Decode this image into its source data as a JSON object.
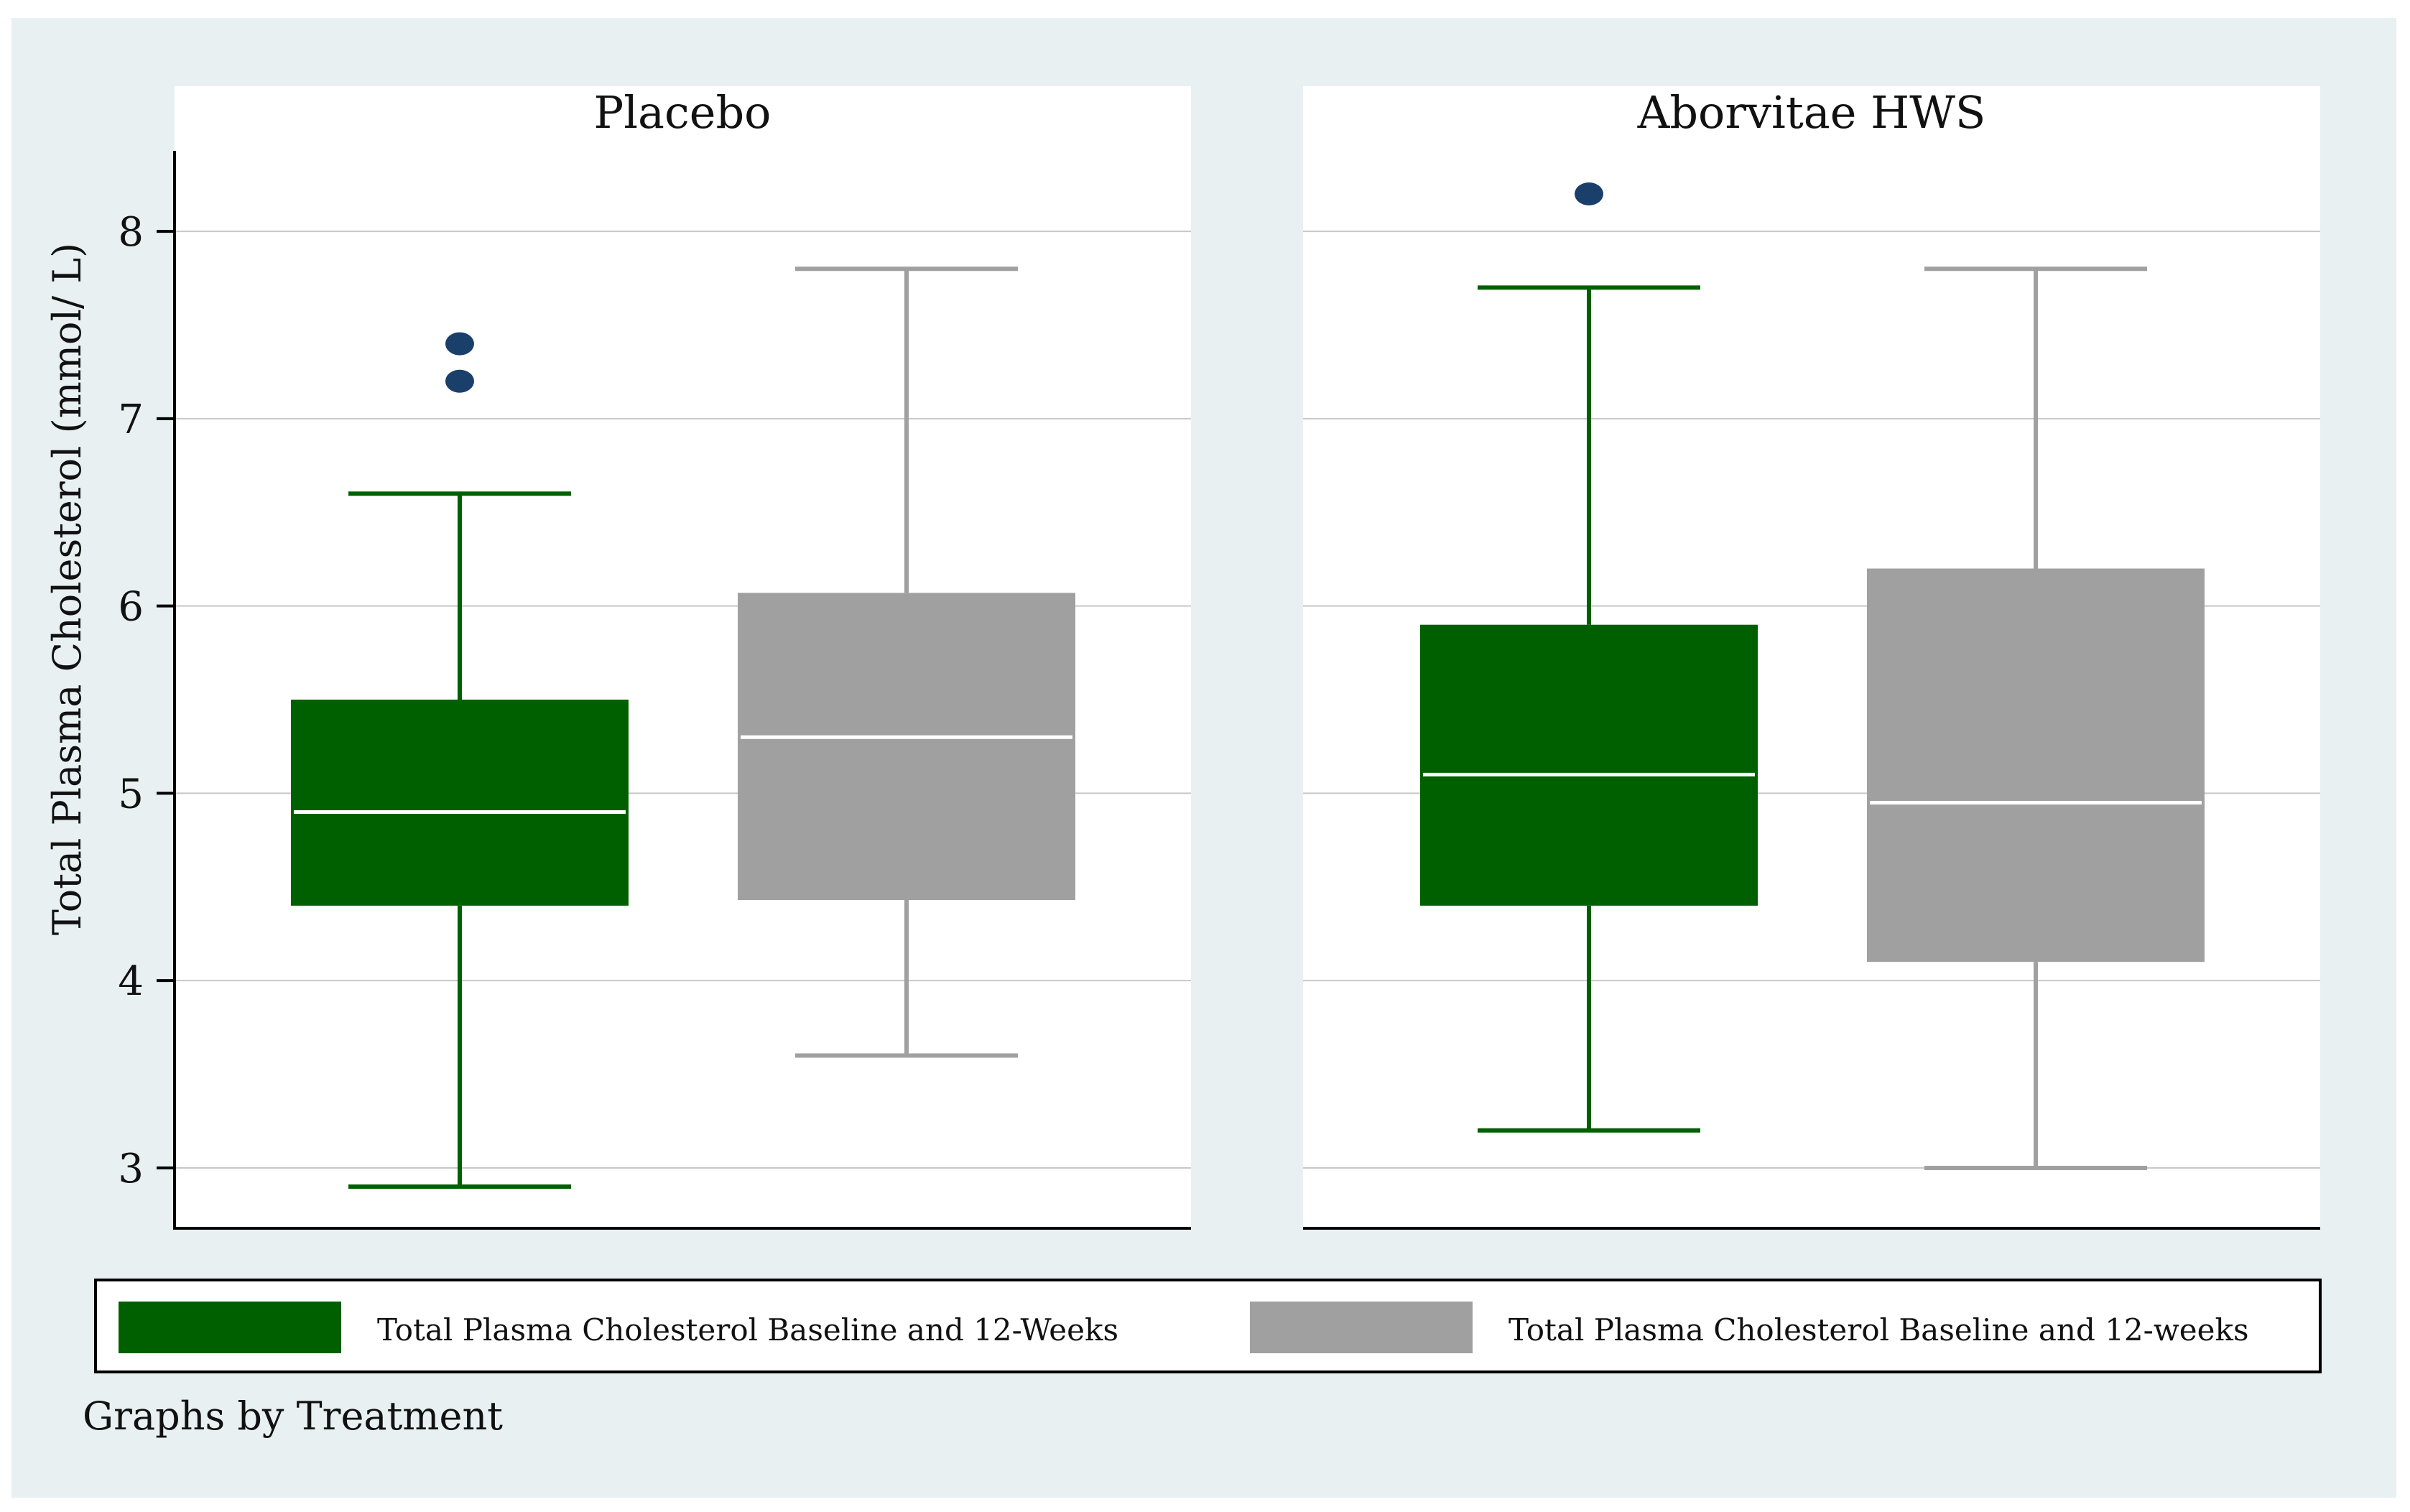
{
  "chart_data": {
    "type": "box",
    "ylabel": "Total Plasma Cholesterol (mmol/ L)",
    "yticks": [
      3,
      4,
      5,
      6,
      7,
      8
    ],
    "ylim": [
      2.67,
      8.43
    ],
    "grid": true,
    "note": "Graphs by Treatment",
    "legend": {
      "position": "bottom",
      "entries": [
        {
          "label": "Total Plasma Cholesterol Baseline and 12-Weeks",
          "color": "#006000"
        },
        {
          "label": "Total Plasma Cholesterol Baseline and 12-weeks",
          "color": "#a0a0a0"
        }
      ]
    },
    "panels": [
      {
        "title": "Placebo",
        "boxes": [
          {
            "color": "#006000",
            "min": 2.9,
            "q1": 4.4,
            "median": 4.9,
            "q3": 5.5,
            "max": 6.6,
            "outliers": [
              7.2,
              7.4
            ]
          },
          {
            "color": "#a0a0a0",
            "min": 3.6,
            "q1": 4.43,
            "median": 5.3,
            "q3": 6.07,
            "max": 7.8,
            "outliers": []
          }
        ]
      },
      {
        "title": "Aborvitae HWS",
        "boxes": [
          {
            "color": "#006000",
            "min": 3.2,
            "q1": 4.4,
            "median": 5.1,
            "q3": 5.9,
            "max": 7.7,
            "outliers": [
              8.2
            ]
          },
          {
            "color": "#a0a0a0",
            "min": 3.0,
            "q1": 4.1,
            "median": 4.95,
            "q3": 6.2,
            "max": 7.8,
            "outliers": []
          }
        ]
      }
    ],
    "colors": {
      "background": "#e8f0f2",
      "outlier": "#1a3f6b",
      "median_line": "#ffffff",
      "grid": "#c8c8c8"
    }
  }
}
